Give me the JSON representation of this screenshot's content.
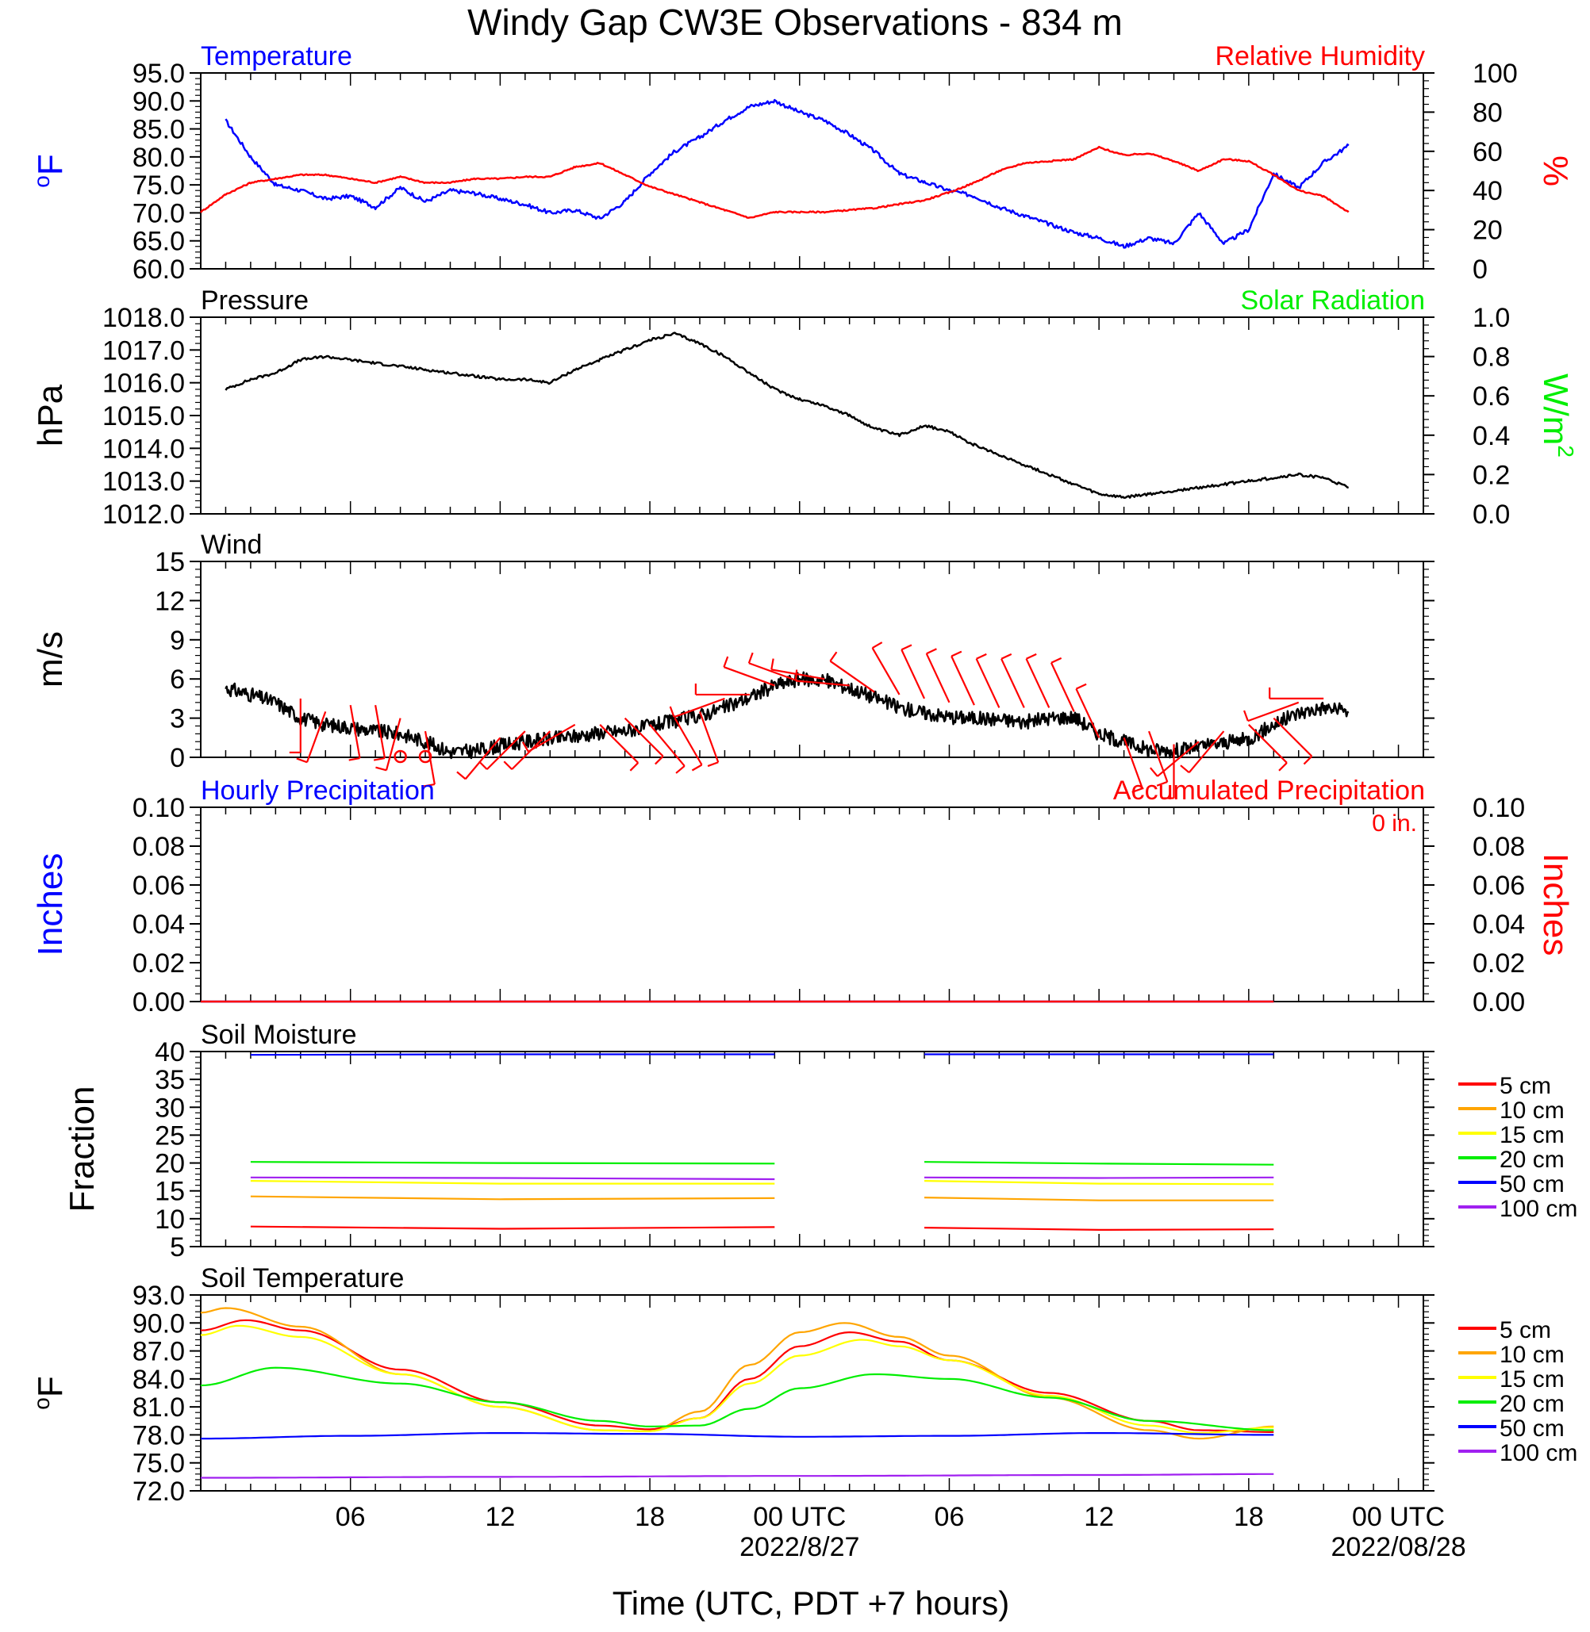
{
  "title": "Windy Gap CW3E Observations - 834 m",
  "x_axis": {
    "label": "Time (UTC, PDT +7 hours)",
    "start": "2022-08-26 00:00 UTC",
    "end": "2022-08-28 01:00 UTC",
    "tick_labels": [
      "06",
      "12",
      "18",
      "00 UTC",
      "06",
      "12",
      "18",
      "00 UTC"
    ],
    "date_labels": [
      "2022/8/27",
      "2022/08/28"
    ]
  },
  "colors": {
    "blue": "#0000ff",
    "red": "#ff0000",
    "green": "#00ee00",
    "black": "#000000",
    "orange": "#ffa500",
    "yellow": "#ffff00",
    "purple": "#a020f0"
  },
  "chart_data": [
    {
      "type": "line",
      "panel": "temperature-humidity",
      "left_title": "Temperature",
      "right_title": "Relative Humidity",
      "ylabel_left": "oF",
      "ylabel_right": "%",
      "ylim_left": [
        60,
        95
      ],
      "ylim_right": [
        0,
        100
      ],
      "left_ticks": [
        "95.0",
        "90.0",
        "85.0",
        "80.0",
        "75.0",
        "70.0",
        "65.0",
        "60.0"
      ],
      "right_ticks": [
        "100",
        "80",
        "60",
        "40",
        "20",
        "0"
      ],
      "series": [
        {
          "name": "Temperature",
          "axis": "left",
          "color": "#0000ff",
          "x": [
            1,
            2,
            3,
            4,
            5,
            6,
            7,
            8,
            9,
            10,
            11,
            12,
            13,
            14,
            15,
            16,
            17,
            18,
            19,
            20,
            21,
            22,
            23,
            24,
            25,
            26,
            27,
            28,
            29,
            30,
            31,
            32,
            33,
            34,
            35,
            36,
            37,
            38,
            39,
            40,
            41,
            42,
            43,
            44,
            45,
            46
          ],
          "y": [
            86.5,
            80,
            75,
            74,
            72.5,
            73,
            71,
            74.5,
            72,
            74,
            73.5,
            72.5,
            71.5,
            70,
            70.5,
            69,
            72,
            77,
            81,
            83.5,
            86.5,
            89,
            90,
            88,
            86.5,
            84,
            81,
            77,
            75.5,
            74,
            73,
            71,
            69.5,
            68,
            66.5,
            65.5,
            64,
            65.5,
            64.5,
            70,
            64.5,
            67,
            77,
            74.5,
            79,
            82
          ]
        },
        {
          "name": "Relative Humidity",
          "axis": "right",
          "color": "#ff0000",
          "x": [
            0,
            1,
            2,
            3,
            4,
            5,
            6,
            7,
            8,
            9,
            10,
            11,
            12,
            13,
            14,
            15,
            16,
            17,
            18,
            19,
            20,
            21,
            22,
            23,
            24,
            25,
            26,
            27,
            28,
            29,
            30,
            31,
            32,
            33,
            34,
            35,
            36,
            37,
            38,
            39,
            40,
            41,
            42,
            43,
            44,
            45,
            46
          ],
          "y": [
            29,
            38,
            44,
            46,
            48,
            48,
            46,
            44,
            47,
            44,
            44,
            46,
            46,
            47,
            47,
            52,
            54,
            48,
            42,
            38,
            34,
            30,
            26,
            29,
            29,
            29,
            30,
            31,
            33,
            35,
            39,
            44,
            50,
            54,
            55,
            56,
            62,
            58,
            59,
            55,
            50,
            56,
            55,
            48,
            40,
            37,
            29
          ]
        }
      ]
    },
    {
      "type": "line",
      "panel": "pressure-solar",
      "left_title": "Pressure",
      "right_title": "Solar Radiation",
      "ylabel_left": "hPa",
      "ylabel_right": "W/m2",
      "ylim_left": [
        1012,
        1018
      ],
      "ylim_right": [
        0,
        1
      ],
      "left_ticks": [
        "1018.0",
        "1017.0",
        "1016.0",
        "1015.0",
        "1014.0",
        "1013.0",
        "1012.0"
      ],
      "right_ticks": [
        "1.0",
        "0.8",
        "0.6",
        "0.4",
        "0.2",
        "0.0"
      ],
      "series": [
        {
          "name": "Pressure",
          "axis": "left",
          "color": "#000000",
          "x": [
            1,
            2,
            3,
            4,
            5,
            6,
            7,
            8,
            9,
            10,
            11,
            12,
            13,
            14,
            15,
            16,
            17,
            18,
            19,
            20,
            21,
            22,
            23,
            24,
            25,
            26,
            27,
            28,
            29,
            30,
            31,
            32,
            33,
            34,
            35,
            36,
            37,
            38,
            39,
            40,
            41,
            42,
            43,
            44,
            45,
            46
          ],
          "y": [
            1015.8,
            1016.1,
            1016.3,
            1016.7,
            1016.8,
            1016.7,
            1016.6,
            1016.5,
            1016.4,
            1016.3,
            1016.2,
            1016.1,
            1016.1,
            1016.0,
            1016.4,
            1016.7,
            1017.0,
            1017.3,
            1017.5,
            1017.2,
            1016.8,
            1016.3,
            1015.8,
            1015.5,
            1015.3,
            1015.0,
            1014.6,
            1014.4,
            1014.7,
            1014.5,
            1014.1,
            1013.8,
            1013.5,
            1013.2,
            1012.9,
            1012.6,
            1012.5,
            1012.6,
            1012.7,
            1012.8,
            1012.9,
            1013.0,
            1013.1,
            1013.2,
            1013.1,
            1012.8
          ]
        }
      ]
    },
    {
      "type": "line",
      "panel": "wind",
      "left_title": "Wind",
      "ylabel_left": "m/s",
      "ylim_left": [
        0,
        15
      ],
      "left_ticks": [
        "15",
        "12",
        "9",
        "6",
        "3",
        "0"
      ],
      "series": [
        {
          "name": "Wind",
          "axis": "left",
          "color": "#000000",
          "x": [
            1,
            2,
            3,
            4,
            5,
            6,
            7,
            8,
            9,
            10,
            11,
            12,
            13,
            14,
            15,
            16,
            17,
            18,
            19,
            20,
            21,
            22,
            23,
            24,
            25,
            26,
            27,
            28,
            29,
            30,
            31,
            32,
            33,
            34,
            35,
            36,
            37,
            38,
            39,
            40,
            41,
            42,
            43,
            44,
            45,
            46
          ],
          "y": [
            5.3,
            4.8,
            4.2,
            3,
            2.5,
            2.3,
            2,
            1.8,
            1.2,
            0.4,
            0.5,
            0.9,
            1.2,
            1.4,
            1.6,
            1.9,
            2,
            2.4,
            2.8,
            3.2,
            3.8,
            4.6,
            5.5,
            6.0,
            5.9,
            5.3,
            4.6,
            3.8,
            3.4,
            3.1,
            3.0,
            2.9,
            2.7,
            3.0,
            3.1,
            1.8,
            1.2,
            0.6,
            0.5,
            0.8,
            1.1,
            1.4,
            2.5,
            3.4,
            3.8,
            3.5
          ]
        }
      ],
      "barbs": {
        "color": "#ff0000",
        "x": [
          4,
          5,
          6,
          7,
          8,
          9,
          10,
          11,
          12,
          13,
          14,
          15,
          16,
          17,
          18,
          19,
          20,
          21,
          22,
          23,
          24,
          25,
          26,
          27,
          28,
          29,
          30,
          31,
          32,
          33,
          34,
          35,
          36,
          37,
          38,
          39,
          40,
          41,
          42,
          43,
          44,
          45
        ],
        "speed": [
          4.5,
          3.5,
          4,
          4,
          3,
          2,
          0.2,
          0.2,
          1.5,
          2,
          2,
          2.5,
          2.5,
          3,
          2.5,
          3,
          3.5,
          4.5,
          4.8,
          5.5,
          5.8,
          6,
          5.5,
          5,
          4.8,
          4.5,
          4.2,
          4,
          3.8,
          3.8,
          3.8,
          3.5,
          1.5,
          1.5,
          2,
          1,
          1.2,
          2,
          2.5,
          3,
          4.2,
          4.5
        ],
        "dir": [
          180,
          200,
          170,
          170,
          195,
          170,
          0,
          0,
          220,
          225,
          225,
          240,
          135,
          135,
          140,
          150,
          160,
          250,
          270,
          290,
          290,
          280,
          275,
          305,
          330,
          335,
          335,
          335,
          335,
          335,
          335,
          335,
          335,
          160,
          160,
          180,
          230,
          220,
          135,
          135,
          250,
          270
        ]
      },
      "calm_markers_x": [
        8,
        9
      ]
    },
    {
      "type": "line",
      "panel": "precipitation",
      "left_title": "Hourly Precipitation",
      "right_title": "Accumulated Precipitation",
      "ylabel_left": "Inches",
      "ylabel_right": "Inches",
      "ylim_left": [
        0,
        0.1
      ],
      "ylim_right": [
        0,
        0.1
      ],
      "left_ticks": [
        "0.10",
        "0.08",
        "0.06",
        "0.04",
        "0.02",
        "0.00"
      ],
      "right_ticks": [
        "0.10",
        "0.08",
        "0.06",
        "0.04",
        "0.02",
        "0.00"
      ],
      "total_label": "0 in.",
      "series": [
        {
          "name": "Hourly Precipitation",
          "axis": "left",
          "color": "#0000ff",
          "x": [
            0,
            43
          ],
          "y": [
            0,
            0
          ]
        },
        {
          "name": "Accumulated Precipitation",
          "axis": "right",
          "color": "#ff0000",
          "x": [
            0,
            43
          ],
          "y": [
            0,
            0
          ]
        }
      ]
    },
    {
      "type": "line",
      "panel": "soil-moisture",
      "left_title": "Soil Moisture",
      "ylabel_left": "Fraction",
      "ylim_left": [
        5,
        40
      ],
      "left_ticks": [
        "40",
        "35",
        "30",
        "25",
        "20",
        "15",
        "10",
        "5"
      ],
      "legend": [
        "5 cm",
        "10 cm",
        "15 cm",
        "20 cm",
        "50 cm",
        "100 cm"
      ],
      "segments": [
        [
          2,
          23
        ],
        [
          29,
          43
        ]
      ],
      "series": [
        {
          "name": "5 cm",
          "color": "#ff0000",
          "x": [
            2,
            12,
            23,
            29,
            36,
            43
          ],
          "y": [
            8.6,
            8.2,
            8.5,
            8.4,
            8.0,
            8.1
          ]
        },
        {
          "name": "10 cm",
          "color": "#ffa500",
          "x": [
            2,
            12,
            23,
            29,
            36,
            43
          ],
          "y": [
            14.0,
            13.5,
            13.7,
            13.8,
            13.3,
            13.3
          ]
        },
        {
          "name": "15 cm",
          "color": "#ffff00",
          "x": [
            2,
            12,
            23,
            29,
            36,
            43
          ],
          "y": [
            16.8,
            16.3,
            16.3,
            16.8,
            16.3,
            16.2
          ]
        },
        {
          "name": "20 cm",
          "color": "#00ee00",
          "x": [
            2,
            12,
            23,
            29,
            36,
            43
          ],
          "y": [
            20.2,
            20.0,
            19.9,
            20.2,
            19.9,
            19.7
          ]
        },
        {
          "name": "50 cm",
          "color": "#0000ff",
          "x": [
            2,
            12,
            23,
            29,
            36,
            43
          ],
          "y": [
            39.4,
            39.5,
            39.5,
            39.5,
            39.5,
            39.5
          ]
        },
        {
          "name": "100 cm",
          "color": "#a020f0",
          "x": [
            2,
            12,
            23,
            29,
            36,
            43
          ],
          "y": [
            17.4,
            17.3,
            17.1,
            17.4,
            17.3,
            17.4
          ]
        }
      ]
    },
    {
      "type": "line",
      "panel": "soil-temperature",
      "left_title": "Soil Temperature",
      "ylabel_left": "oF",
      "ylim_left": [
        72,
        93
      ],
      "left_ticks": [
        "93.0",
        "90.0",
        "87.0",
        "84.0",
        "81.0",
        "78.0",
        "75.0",
        "72.0"
      ],
      "legend": [
        "5 cm",
        "10 cm",
        "15 cm",
        "20 cm",
        "50 cm",
        "100 cm"
      ],
      "series": [
        {
          "name": "5 cm",
          "color": "#ff0000",
          "x": [
            0,
            1.8,
            4,
            8,
            12,
            16,
            18,
            20,
            22,
            24,
            26,
            28,
            30,
            34,
            38,
            40,
            43
          ],
          "y": [
            89.2,
            90.3,
            89.2,
            85.0,
            81.5,
            79.0,
            78.6,
            79.8,
            84.0,
            87.5,
            89.0,
            88.0,
            86.0,
            82.5,
            79.5,
            78.5,
            78.3
          ]
        },
        {
          "name": "10 cm",
          "color": "#ffa500",
          "x": [
            0,
            1,
            4,
            8,
            12,
            16,
            18,
            20,
            22,
            24,
            25.8,
            28,
            30,
            34,
            38,
            40,
            43
          ],
          "y": [
            91.1,
            91.6,
            89.6,
            84.5,
            81.0,
            78.5,
            78.4,
            80.5,
            85.5,
            89.0,
            90.0,
            88.5,
            86.5,
            82.0,
            78.5,
            77.6,
            78.9
          ]
        },
        {
          "name": "15 cm",
          "color": "#ffff00",
          "x": [
            0,
            1.5,
            4,
            8,
            12,
            16,
            18,
            20,
            22,
            24,
            26.5,
            28,
            30,
            34,
            38,
            40,
            43
          ],
          "y": [
            88.7,
            89.7,
            88.5,
            84.5,
            81.0,
            78.5,
            78.4,
            79.8,
            83.5,
            86.5,
            88.2,
            87.5,
            86.0,
            82.2,
            79.0,
            78.2,
            78.8
          ]
        },
        {
          "name": "20 cm",
          "color": "#00ee00",
          "x": [
            0,
            3,
            8,
            12,
            16,
            18,
            20,
            22,
            24,
            27,
            30,
            34,
            38,
            43
          ],
          "y": [
            83.3,
            85.2,
            83.5,
            81.5,
            79.5,
            78.9,
            79.0,
            80.8,
            83.0,
            84.5,
            84.0,
            82.0,
            79.5,
            78.5
          ]
        },
        {
          "name": "50 cm",
          "color": "#0000ff",
          "x": [
            0,
            6,
            12,
            18,
            24,
            30,
            36,
            43
          ],
          "y": [
            77.6,
            77.9,
            78.2,
            78.1,
            77.8,
            77.9,
            78.2,
            78.0
          ]
        },
        {
          "name": "100 cm",
          "color": "#a020f0",
          "x": [
            0,
            12,
            24,
            36,
            43
          ],
          "y": [
            73.4,
            73.5,
            73.6,
            73.7,
            73.8
          ]
        }
      ]
    }
  ]
}
